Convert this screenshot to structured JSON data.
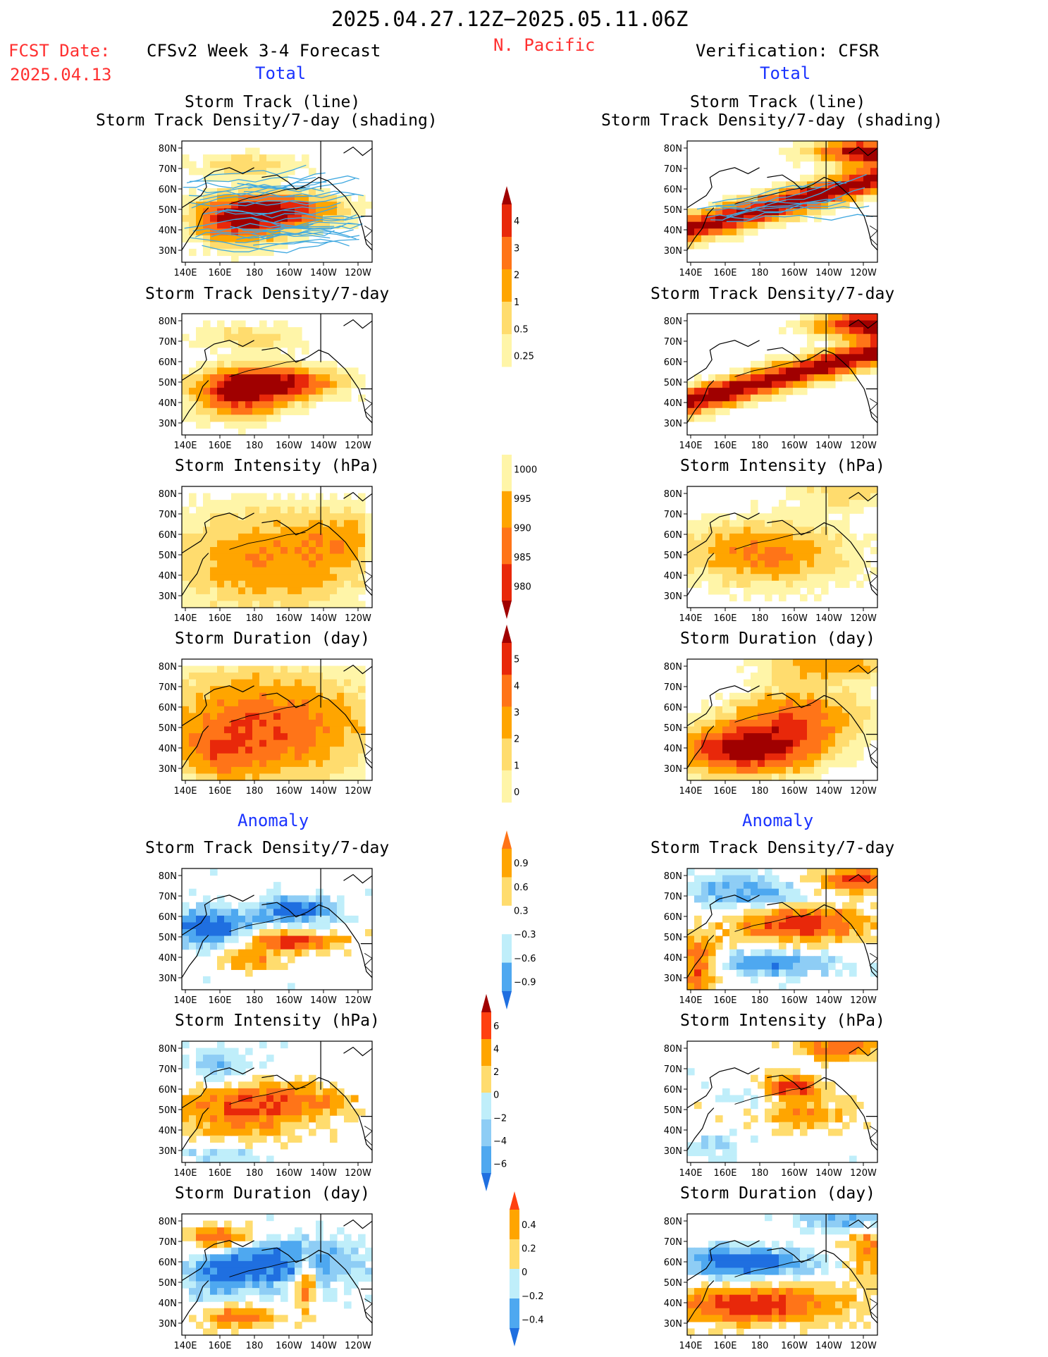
{
  "header": {
    "date_range": "2025.04.27.12Z−2025.05.11.06Z",
    "fcst_label": "FCST Date:",
    "fcst_date": "2025.04.13",
    "forecast_title": "CFSv2 Week 3-4 Forecast",
    "region": "N. Pacific",
    "verification_title": "Verification: CFSR"
  },
  "sections": {
    "total": "Total",
    "anomaly": "Anomaly"
  },
  "panel_titles": {
    "storm_track_line": "Storm Track (line)",
    "storm_track_density_shading": "Storm Track Density/7-day (shading)",
    "storm_track_density": "Storm Track Density/7-day",
    "storm_intensity": "Storm Intensity (hPa)",
    "storm_duration": "Storm Duration (day)"
  },
  "axis": {
    "lat_labels": [
      "80N",
      "70N",
      "60N",
      "50N",
      "40N",
      "30N"
    ],
    "lon_labels": [
      "140E",
      "160E",
      "180",
      "160W",
      "140W",
      "120W"
    ]
  },
  "colors": {
    "track_line": "#3fa8e0",
    "title_red": "#ff3030",
    "title_blue": "#1a33ff",
    "warm": [
      "#fff5a8",
      "#ffdc6e",
      "#ffa500",
      "#ff7418",
      "#e8280a",
      "#a00000"
    ],
    "cool": [
      "#bfeefa",
      "#8ecdf5",
      "#4ea8f0",
      "#1f6fe0"
    ]
  },
  "chart_data": [
    {
      "type": "heatmap",
      "title": "Storm Track (line) / Storm Track Density/7-day (shading)",
      "source": "CFSv2 Week 3-4 Forecast",
      "section": "Total",
      "xlabels": [
        "140E",
        "160E",
        "180",
        "160W",
        "140W",
        "120W"
      ],
      "ylabels": [
        "80N",
        "70N",
        "60N",
        "50N",
        "40N",
        "30N"
      ],
      "max_level": 4,
      "core_lat": 50,
      "core_lon": "170W"
    },
    {
      "type": "heatmap",
      "title": "Storm Track (line) / Storm Track Density/7-day (shading)",
      "source": "Verification: CFSR",
      "section": "Total",
      "max_level": 4,
      "core_lat": 55,
      "core_lon": "160W"
    },
    {
      "type": "heatmap",
      "title": "Storm Track Density/7-day",
      "source": "CFSv2 Week 3-4 Forecast",
      "section": "Total"
    },
    {
      "type": "heatmap",
      "title": "Storm Track Density/7-day",
      "source": "Verification: CFSR",
      "section": "Total"
    },
    {
      "type": "heatmap",
      "title": "Storm Intensity (hPa)",
      "source": "CFSv2 Week 3-4 Forecast",
      "section": "Total"
    },
    {
      "type": "heatmap",
      "title": "Storm Intensity (hPa)",
      "source": "Verification: CFSR",
      "section": "Total"
    },
    {
      "type": "heatmap",
      "title": "Storm Duration (day)",
      "source": "CFSv2 Week 3-4 Forecast",
      "section": "Total"
    },
    {
      "type": "heatmap",
      "title": "Storm Duration (day)",
      "source": "Verification: CFSR",
      "section": "Total"
    },
    {
      "type": "heatmap",
      "title": "Storm Track Density/7-day",
      "source": "CFSv2 Week 3-4 Forecast",
      "section": "Anomaly"
    },
    {
      "type": "heatmap",
      "title": "Storm Track Density/7-day",
      "source": "Verification: CFSR",
      "section": "Anomaly"
    },
    {
      "type": "heatmap",
      "title": "Storm Intensity (hPa)",
      "source": "CFSv2 Week 3-4 Forecast",
      "section": "Anomaly"
    },
    {
      "type": "heatmap",
      "title": "Storm Intensity (hPa)",
      "source": "Verification: CFSR",
      "section": "Anomaly"
    },
    {
      "type": "heatmap",
      "title": "Storm Duration (day)",
      "source": "CFSv2 Week 3-4 Forecast",
      "section": "Anomaly"
    },
    {
      "type": "heatmap",
      "title": "Storm Duration (day)",
      "source": "Verification: CFSR",
      "section": "Anomaly"
    }
  ],
  "colorbars": [
    {
      "name": "track-density",
      "labels": [
        "4",
        "3",
        "2",
        "1",
        "0.5",
        "0.25"
      ],
      "colors": [
        "#a00000",
        "#e8280a",
        "#ff7418",
        "#ffa500",
        "#ffdc6e",
        "#fff5a8"
      ],
      "triangle_top": true,
      "triangle_bottom": false
    },
    {
      "name": "intensity",
      "labels": [
        "1000",
        "995",
        "990",
        "985",
        "980"
      ],
      "colors": [
        "#fff5a8",
        "#ffa500",
        "#ff7418",
        "#e8280a",
        "#a00000"
      ],
      "triangle_top": false,
      "triangle_bottom": true
    },
    {
      "name": "duration",
      "labels": [
        "5",
        "4",
        "3",
        "2",
        "1",
        "0"
      ],
      "colors": [
        "#a00000",
        "#e8280a",
        "#ff7418",
        "#ffa500",
        "#ffdc6e",
        "#fff5a8"
      ],
      "triangle_top": true,
      "triangle_bottom": false
    },
    {
      "name": "density-anomaly",
      "labels": [
        "0.9",
        "0.6",
        "0.3",
        "−0.3",
        "−0.6",
        "−0.9"
      ],
      "colors": [
        "#ff7418",
        "#ffa500",
        "#ffdc6e",
        "#ffffff",
        "#bfeefa",
        "#4ea8f0",
        "#1f6fe0"
      ],
      "triangle_top": true,
      "triangle_bottom": true
    },
    {
      "name": "intensity-anomaly",
      "labels": [
        "6",
        "4",
        "2",
        "0",
        "−2",
        "−4",
        "−6"
      ],
      "colors": [
        "#a00000",
        "#ff4010",
        "#ffa500",
        "#ffdc6e",
        "#bfeefa",
        "#8ecdf5",
        "#4ea8f0",
        "#1f6fe0"
      ],
      "triangle_top": true,
      "triangle_bottom": true
    },
    {
      "name": "duration-anomaly",
      "labels": [
        "0.4",
        "0.2",
        "0",
        "−0.2",
        "−0.4"
      ],
      "colors": [
        "#ff4010",
        "#ffa500",
        "#ffdc6e",
        "#bfeefa",
        "#4ea8f0",
        "#1f6fe0"
      ],
      "triangle_top": true,
      "triangle_bottom": true
    }
  ]
}
